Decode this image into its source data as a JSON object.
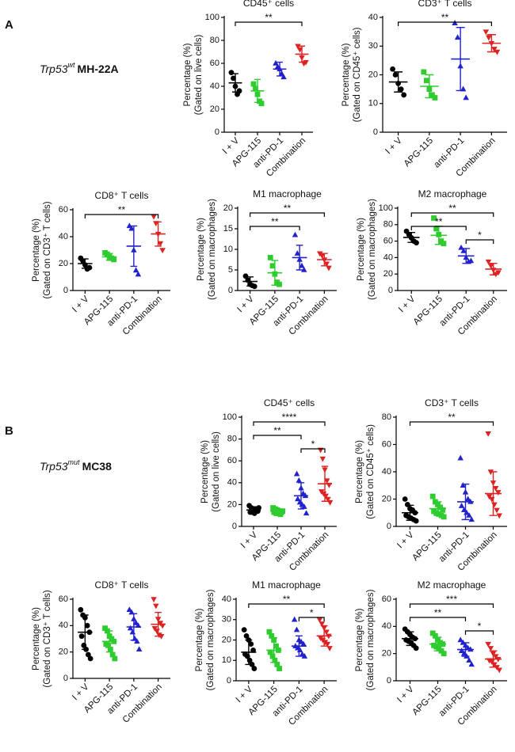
{
  "sections": [
    {
      "label": "A",
      "gene": "Trp53",
      "genotype": "wt",
      "model": "MH-22A"
    },
    {
      "label": "B",
      "gene": "Trp53",
      "genotype": "mut",
      "model": "MC38"
    }
  ],
  "chart_data": [
    {
      "type": "dotplot",
      "title": "CD45⁺ cells",
      "ylabel": [
        "Percentage (%)",
        "(Gated on live cells)"
      ],
      "categories": [
        "I + V",
        "APG-115",
        "anti-PD-1",
        "Combination"
      ],
      "colors": [
        "#000000",
        "#2ecc2e",
        "#2222cc",
        "#dd2222"
      ],
      "markers": [
        "circle",
        "square",
        "triangle-up",
        "triangle-down"
      ],
      "points": [
        [
          52,
          47,
          40,
          33,
          36
        ],
        [
          42,
          38,
          33,
          27,
          25
        ],
        [
          60,
          57,
          55,
          51,
          48
        ],
        [
          75,
          72,
          65,
          60,
          61
        ]
      ],
      "means": [
        43,
        36,
        55,
        68
      ],
      "sd": [
        8,
        10,
        6,
        7
      ],
      "ylim": [
        0,
        100
      ],
      "yticks": [
        0,
        20,
        40,
        60,
        80,
        100
      ],
      "significance": [
        {
          "groups": [
            0,
            3
          ],
          "label": "**"
        }
      ]
    },
    {
      "type": "dotplot",
      "title": "CD3⁺ T cells",
      "ylabel": [
        "Percentage (%)",
        "(Gated on CD45⁺ cells)"
      ],
      "categories": [
        "I + V",
        "APG-115",
        "anti-PD-1",
        "Combination"
      ],
      "colors": [
        "#000000",
        "#2ecc2e",
        "#2222cc",
        "#dd2222"
      ],
      "markers": [
        "circle",
        "square",
        "triangle-up",
        "triangle-down"
      ],
      "points": [
        [
          22,
          20,
          17,
          15,
          13
        ],
        [
          21,
          18,
          15,
          13,
          12
        ],
        [
          38,
          33,
          23,
          15,
          12
        ],
        [
          35,
          33,
          31,
          29,
          28
        ]
      ],
      "means": [
        17.5,
        16,
        25.5,
        31
      ],
      "sd": [
        3.5,
        4,
        11,
        3
      ],
      "ylim": [
        0,
        40
      ],
      "yticks": [
        0,
        10,
        20,
        30,
        40
      ],
      "significance": [
        {
          "groups": [
            0,
            3
          ],
          "label": "**"
        }
      ]
    },
    {
      "type": "dotplot",
      "title": "CD8⁺ T cells",
      "ylabel": [
        "Percentage (%)",
        "(Gated on CD3⁺ T cells)"
      ],
      "categories": [
        "I + V",
        "APG-115",
        "anti-PD-1",
        "Combination"
      ],
      "colors": [
        "#000000",
        "#2ecc2e",
        "#2222cc",
        "#dd2222"
      ],
      "markers": [
        "circle",
        "square",
        "triangle-up",
        "triangle-down"
      ],
      "points": [
        [
          24,
          22,
          19,
          16,
          17
        ],
        [
          28,
          27,
          25,
          24,
          23
        ],
        [
          48,
          46,
          30,
          15,
          12
        ],
        [
          55,
          50,
          42,
          35,
          30
        ]
      ],
      "means": [
        20,
        25,
        33,
        42
      ],
      "sd": [
        3.5,
        2.5,
        15,
        9
      ],
      "ylim": [
        0,
        60
      ],
      "yticks": [
        0,
        20,
        40,
        60
      ],
      "significance": [
        {
          "groups": [
            0,
            3
          ],
          "label": "**"
        }
      ]
    },
    {
      "type": "dotplot",
      "title": "M1 macrophage",
      "ylabel": [
        "Percentage (%)",
        "(Gated on macrophages)"
      ],
      "categories": [
        "I + V",
        "APG-115",
        "anti-PD-1",
        "Combination"
      ],
      "colors": [
        "#000000",
        "#2ecc2e",
        "#2222cc",
        "#dd2222"
      ],
      "markers": [
        "circle",
        "square",
        "triangle-up",
        "triangle-down"
      ],
      "points": [
        [
          3.5,
          2.5,
          1.5,
          1.2,
          1.0
        ],
        [
          8,
          6,
          4,
          2,
          1.5
        ],
        [
          13.5,
          9,
          7.5,
          6,
          5
        ],
        [
          9,
          8.5,
          7.5,
          6.5,
          5.5
        ]
      ],
      "means": [
        2.2,
        4.3,
        8,
        7.5
      ],
      "sd": [
        1.1,
        3,
        3,
        1.5
      ],
      "ylim": [
        0,
        20
      ],
      "yticks": [
        0,
        5,
        10,
        15,
        20
      ],
      "significance": [
        {
          "groups": [
            0,
            3
          ],
          "label": "**"
        },
        {
          "groups": [
            0,
            2
          ],
          "label": "**"
        }
      ]
    },
    {
      "type": "dotplot",
      "title": "M2 macrophage",
      "ylabel": [
        "Percentage (%)",
        "(Gated on macrophages)"
      ],
      "categories": [
        "I + V",
        "APG-115",
        "anti-PD-1",
        "Combination"
      ],
      "colors": [
        "#000000",
        "#2ecc2e",
        "#2222cc",
        "#dd2222"
      ],
      "markers": [
        "circle",
        "square",
        "triangle-up",
        "triangle-down"
      ],
      "points": [
        [
          72,
          68,
          64,
          60,
          58
        ],
        [
          88,
          75,
          68,
          60,
          57
        ],
        [
          52,
          48,
          40,
          35,
          36
        ],
        [
          35,
          30,
          25,
          20,
          22
        ]
      ],
      "means": [
        64.5,
        67,
        42,
        26
      ],
      "sd": [
        6,
        11,
        9,
        7
      ],
      "ylim": [
        0,
        100
      ],
      "yticks": [
        0,
        20,
        40,
        60,
        80,
        100
      ],
      "significance": [
        {
          "groups": [
            0,
            3
          ],
          "label": "**"
        },
        {
          "groups": [
            0,
            2
          ],
          "label": "**"
        },
        {
          "groups": [
            2,
            3
          ],
          "label": "*"
        }
      ]
    },
    {
      "type": "dotplot",
      "title": "CD45⁺ cells",
      "ylabel": [
        "Percentage (%)",
        "(Gated on live cells)"
      ],
      "categories": [
        "I + V",
        "APG-115",
        "anti-PD-1",
        "Combination"
      ],
      "colors": [
        "#000000",
        "#2ecc2e",
        "#2222cc",
        "#dd2222"
      ],
      "markers": [
        "circle",
        "square",
        "triangle-up",
        "triangle-down"
      ],
      "points": [
        [
          19,
          17,
          16,
          15,
          14,
          13,
          13,
          12,
          15,
          17
        ],
        [
          17,
          16,
          15,
          14,
          13,
          13,
          12,
          12,
          11,
          14
        ],
        [
          48,
          42,
          35,
          30,
          28,
          25,
          22,
          20,
          18,
          12
        ],
        [
          70,
          62,
          52,
          42,
          38,
          32,
          30,
          28,
          25,
          22
        ]
      ],
      "means": [
        15,
        14,
        28,
        39
      ],
      "sd": [
        3,
        2,
        12,
        16
      ],
      "ylim": [
        0,
        100
      ],
      "yticks": [
        0,
        20,
        40,
        60,
        80,
        100
      ],
      "significance": [
        {
          "groups": [
            0,
            3
          ],
          "label": "****"
        },
        {
          "groups": [
            0,
            2
          ],
          "label": "**"
        },
        {
          "groups": [
            2,
            3
          ],
          "label": "*"
        }
      ]
    },
    {
      "type": "dotplot",
      "title": "CD3⁺ T cells",
      "ylabel": [
        "Percentage (%)",
        "(Gated on CD45⁺ cells)"
      ],
      "categories": [
        "I + V",
        "APG-115",
        "anti-PD-1",
        "Combination"
      ],
      "colors": [
        "#000000",
        "#2ecc2e",
        "#2222cc",
        "#dd2222"
      ],
      "markers": [
        "circle",
        "square",
        "triangle-up",
        "triangle-down"
      ],
      "points": [
        [
          20,
          16,
          13,
          12,
          10,
          8,
          7,
          6,
          5,
          4
        ],
        [
          22,
          18,
          16,
          14,
          12,
          11,
          10,
          9,
          8,
          7
        ],
        [
          50,
          30,
          25,
          20,
          18,
          15,
          12,
          10,
          8,
          5
        ],
        [
          68,
          40,
          32,
          28,
          25,
          22,
          20,
          16,
          12,
          8
        ]
      ],
      "means": [
        10,
        13,
        18,
        24
      ],
      "sd": [
        5.5,
        5,
        13,
        16
      ],
      "ylim": [
        0,
        80
      ],
      "yticks": [
        0,
        20,
        40,
        60,
        80
      ],
      "significance": [
        {
          "groups": [
            0,
            3
          ],
          "label": "**"
        }
      ]
    },
    {
      "type": "dotplot",
      "title": "CD8⁺ T cells",
      "ylabel": [
        "Percentage (%)",
        "(Gated on CD3⁺ T cells)"
      ],
      "categories": [
        "I + V",
        "APG-115",
        "anti-PD-1",
        "Combination"
      ],
      "colors": [
        "#000000",
        "#2ecc2e",
        "#2222cc",
        "#dd2222"
      ],
      "markers": [
        "circle",
        "square",
        "triangle-up",
        "triangle-down"
      ],
      "points": [
        [
          52,
          48,
          46,
          40,
          35,
          32,
          25,
          22,
          18,
          15
        ],
        [
          38,
          36,
          32,
          30,
          28,
          26,
          25,
          22,
          18,
          15
        ],
        [
          52,
          50,
          45,
          42,
          40,
          38,
          35,
          30,
          28,
          22
        ],
        [
          60,
          55,
          45,
          42,
          40,
          38,
          36,
          33,
          32
        ]
      ],
      "means": [
        35,
        28,
        39,
        41
      ],
      "sd": [
        13,
        8,
        10,
        9
      ],
      "ylim": [
        0,
        60
      ],
      "yticks": [
        0,
        20,
        40,
        60
      ],
      "significance": []
    },
    {
      "type": "dotplot",
      "title": "M1 macrophage",
      "ylabel": [
        "Percentage (%)",
        "(Gated on macrophages)"
      ],
      "categories": [
        "I + V",
        "APG-115",
        "anti-PD-1",
        "Combination"
      ],
      "colors": [
        "#000000",
        "#2ecc2e",
        "#2222cc",
        "#dd2222"
      ],
      "markers": [
        "circle",
        "square",
        "triangle-up",
        "triangle-down"
      ],
      "points": [
        [
          25,
          22,
          20,
          18,
          15,
          13,
          12,
          10,
          8,
          6
        ],
        [
          24,
          22,
          20,
          17,
          15,
          14,
          12,
          10,
          8,
          6
        ],
        [
          30,
          25,
          20,
          19,
          18,
          17,
          16,
          15,
          13,
          12
        ],
        [
          30,
          28,
          26,
          24,
          22,
          21,
          20,
          19,
          18,
          16
        ]
      ],
      "means": [
        14,
        15,
        17,
        22
      ],
      "sd": [
        6,
        6,
        5,
        5
      ],
      "ylim": [
        0,
        40
      ],
      "yticks": [
        0,
        10,
        20,
        30,
        40
      ],
      "significance": [
        {
          "groups": [
            0,
            3
          ],
          "label": "**"
        },
        {
          "groups": [
            2,
            3
          ],
          "label": "*"
        }
      ]
    },
    {
      "type": "dotplot",
      "title": "M2 macrophage",
      "ylabel": [
        "Percentage (%)",
        "(Gated on macrophages)"
      ],
      "categories": [
        "I + V",
        "APG-115",
        "anti-PD-1",
        "Combination"
      ],
      "colors": [
        "#000000",
        "#2ecc2e",
        "#2222cc",
        "#dd2222"
      ],
      "markers": [
        "circle",
        "square",
        "triangle-up",
        "triangle-down"
      ],
      "points": [
        [
          38,
          36,
          34,
          32,
          31,
          30,
          29,
          28,
          26,
          24
        ],
        [
          35,
          33,
          30,
          28,
          27,
          26,
          25,
          24,
          22,
          20
        ],
        [
          30,
          28,
          26,
          24,
          23,
          22,
          20,
          18,
          15,
          12
        ],
        [
          27,
          24,
          20,
          18,
          16,
          15,
          14,
          12,
          10,
          8
        ]
      ],
      "means": [
        31,
        27,
        23,
        16
      ],
      "sd": [
        5,
        5,
        5,
        6
      ],
      "ylim": [
        0,
        60
      ],
      "yticks": [
        0,
        20,
        40,
        60
      ],
      "significance": [
        {
          "groups": [
            0,
            3
          ],
          "label": "***"
        },
        {
          "groups": [
            0,
            2
          ],
          "label": "**"
        },
        {
          "groups": [
            2,
            3
          ],
          "label": "*"
        }
      ]
    }
  ]
}
